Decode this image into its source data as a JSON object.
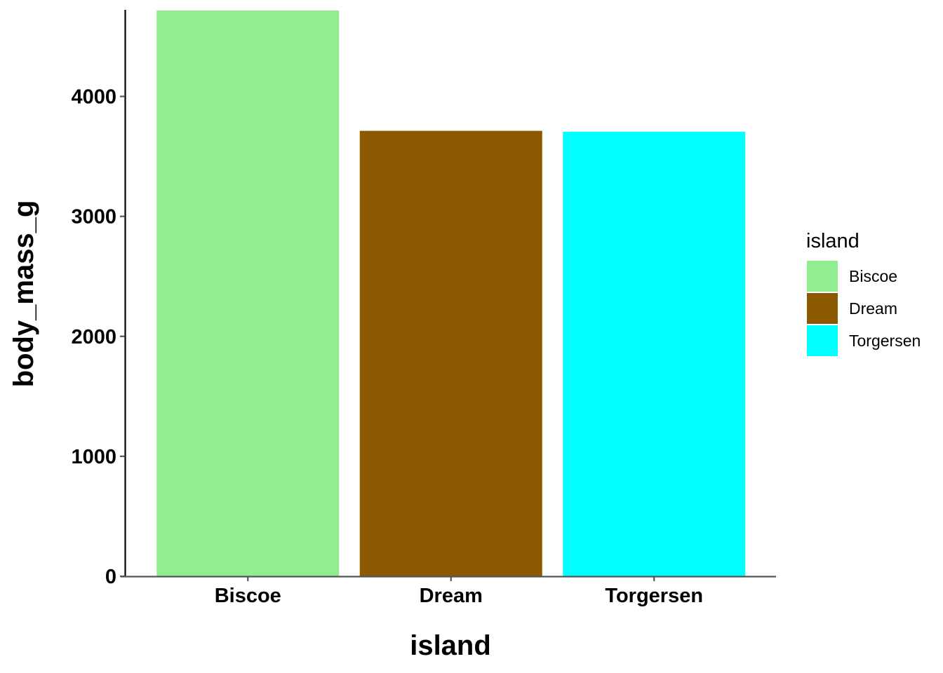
{
  "chart_data": {
    "type": "bar",
    "categories": [
      "Biscoe",
      "Dream",
      "Torgersen"
    ],
    "values": [
      4716,
      3713,
      3706
    ],
    "colors": [
      "#90EE90",
      "#8B5A00",
      "#00FFFF"
    ],
    "xlabel": "island",
    "ylabel": "body_mass_g",
    "ylim": [
      0,
      4716
    ],
    "yticks": [
      0,
      1000,
      2000,
      3000,
      4000
    ],
    "ytick_labels": [
      "0",
      "1000",
      "2000",
      "3000",
      "4000"
    ],
    "grid": false,
    "legend": {
      "title": "island",
      "position": "right",
      "entries": [
        "Biscoe",
        "Dream",
        "Torgersen"
      ]
    }
  }
}
